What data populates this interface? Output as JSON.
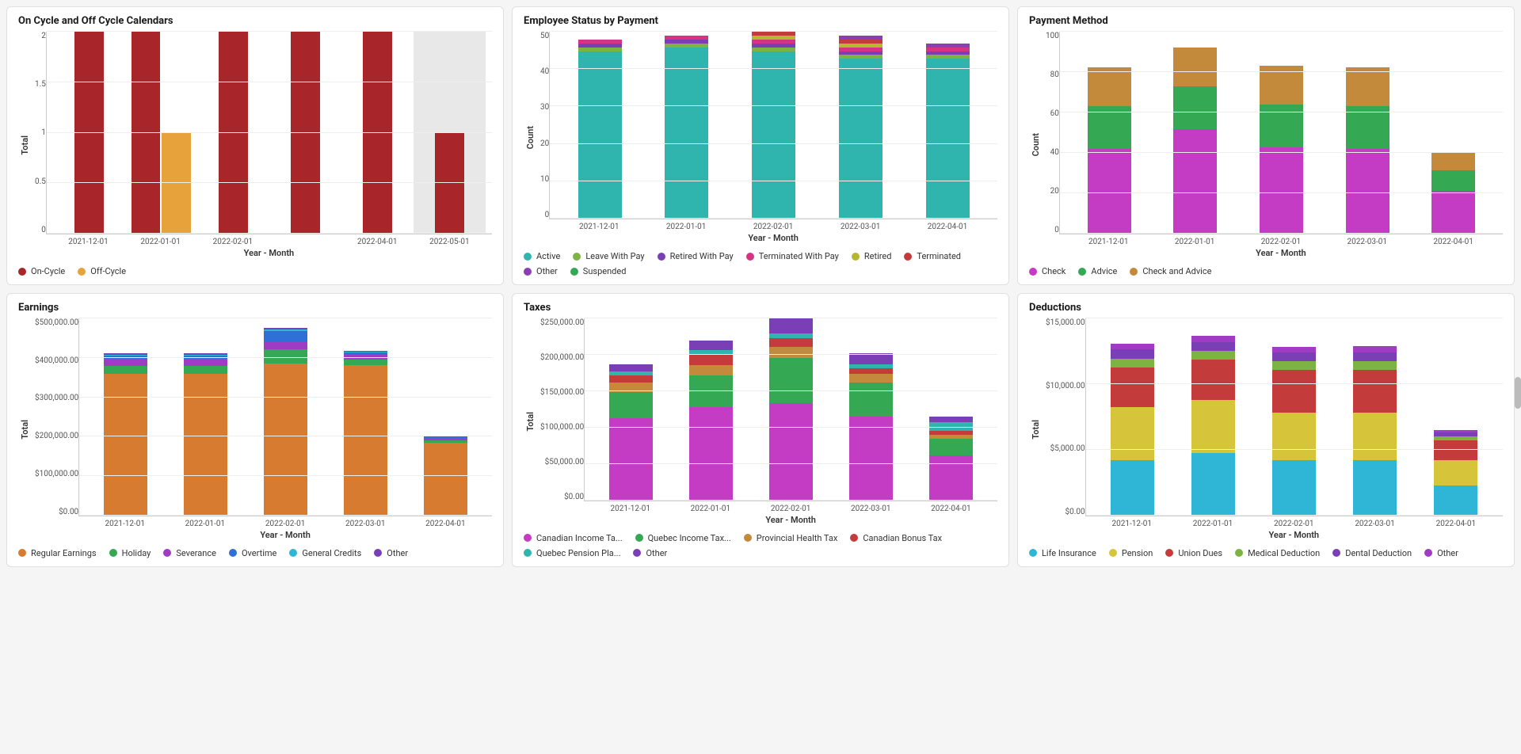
{
  "layout": {
    "columns": 3,
    "rows": 2,
    "background_color": "#f5f5f5",
    "panel_bg": "#ffffff",
    "panel_border": "#e0e0e0"
  },
  "axis_font_size": 11,
  "tick_font_size": 10,
  "legend_font_size": 11,
  "title_font_size": 13,
  "charts": [
    {
      "id": "cycle",
      "title": "On Cycle and Off Cycle Calendars",
      "type": "grouped-bar",
      "x_label": "Year - Month",
      "y_label": "Total",
      "categories": [
        "2021-12-01",
        "2022-01-01",
        "2022-02-01",
        "",
        "2022-04-01",
        "2022-05-01"
      ],
      "y_ticks": [
        "2",
        "1.5",
        "1",
        "0.5",
        "0"
      ],
      "y_max": 2,
      "grid_color": "#eeeeee",
      "highlight_last_bg": "#e8e8e8",
      "series": [
        {
          "name": "On-Cycle",
          "color": "#a8262a",
          "values": [
            2,
            2,
            2,
            2,
            2,
            1
          ]
        },
        {
          "name": "Off-Cycle",
          "color": "#e8a23c",
          "values": [
            0,
            1,
            0,
            0,
            0,
            0
          ]
        }
      ]
    },
    {
      "id": "emp-status",
      "title": "Employee Status by Payment",
      "type": "stacked-bar",
      "x_label": "Year - Month",
      "y_label": "Count",
      "categories": [
        "2021-12-01",
        "2022-01-01",
        "2022-02-01",
        "2022-03-01",
        "2022-04-01"
      ],
      "y_ticks": [
        "50",
        "40",
        "30",
        "20",
        "10",
        "0"
      ],
      "y_max": 50,
      "grid_color": "#eeeeee",
      "series": [
        {
          "name": "Active",
          "color": "#2fb5ad",
          "values": [
            43,
            44,
            43,
            41,
            41
          ]
        },
        {
          "name": "Leave With Pay",
          "color": "#7cb342",
          "values": [
            1,
            1,
            1,
            1,
            1
          ]
        },
        {
          "name": "Retired With Pay",
          "color": "#7b3fb5",
          "values": [
            1,
            1,
            1,
            1,
            1
          ]
        },
        {
          "name": "Terminated With Pay",
          "color": "#d63384",
          "values": [
            1,
            1,
            1,
            1,
            1
          ]
        },
        {
          "name": "Retired",
          "color": "#b5b82f",
          "values": [
            0,
            0,
            1,
            1,
            0
          ]
        },
        {
          "name": "Terminated",
          "color": "#c43b3b",
          "values": [
            0,
            0,
            1,
            1,
            0
          ]
        },
        {
          "name": "Other",
          "color": "#8a3fb5",
          "values": [
            0,
            0,
            0,
            1,
            1
          ]
        },
        {
          "name": "Suspended",
          "color": "#34a853",
          "values": [
            0,
            0,
            0,
            0,
            0
          ]
        }
      ]
    },
    {
      "id": "payment-method",
      "title": "Payment Method",
      "type": "stacked-bar",
      "x_label": "Year - Month",
      "y_label": "Count",
      "categories": [
        "2021-12-01",
        "2022-01-01",
        "2022-02-01",
        "2022-03-01",
        "2022-04-01"
      ],
      "y_ticks": [
        "100",
        "80",
        "60",
        "40",
        "20",
        "0"
      ],
      "y_max": 110,
      "grid_color": "#eeeeee",
      "series": [
        {
          "name": "Check",
          "color": "#c43bc4",
          "values": [
            48,
            59,
            49,
            48,
            24
          ]
        },
        {
          "name": "Advice",
          "color": "#34a853",
          "values": [
            24,
            24,
            24,
            24,
            12
          ]
        },
        {
          "name": "Check and Advice",
          "color": "#c48a3b",
          "values": [
            22,
            22,
            22,
            22,
            10
          ]
        }
      ]
    },
    {
      "id": "earnings",
      "title": "Earnings",
      "type": "stacked-bar",
      "x_label": "Year - Month",
      "y_label": "Total",
      "categories": [
        "2021-12-01",
        "2022-01-01",
        "2022-02-01",
        "2022-03-01",
        "2022-04-01"
      ],
      "y_ticks": [
        "$500,000.00",
        "$400,000.00",
        "$300,000.00",
        "$200,000.00",
        "$100,000.00",
        "$0.00"
      ],
      "y_max": 550000,
      "grid_color": "#eeeeee",
      "series": [
        {
          "name": "Regular Earnings",
          "color": "#d67b2f",
          "values": [
            400000,
            400000,
            430000,
            425000,
            205000
          ]
        },
        {
          "name": "Holiday",
          "color": "#34a853",
          "values": [
            22000,
            22000,
            40000,
            15000,
            8000
          ]
        },
        {
          "name": "Severance",
          "color": "#a03bc4",
          "values": [
            20000,
            20000,
            20000,
            15000,
            7000
          ]
        },
        {
          "name": "Overtime",
          "color": "#2f6fd6",
          "values": [
            10000,
            10000,
            30000,
            5000,
            3000
          ]
        },
        {
          "name": "General Credits",
          "color": "#2fb5d6",
          "values": [
            3000,
            3000,
            5000,
            2000,
            1000
          ]
        },
        {
          "name": "Other",
          "color": "#7b3fb5",
          "values": [
            3000,
            3000,
            5000,
            2000,
            1000
          ]
        }
      ]
    },
    {
      "id": "taxes",
      "title": "Taxes",
      "type": "stacked-bar",
      "x_label": "Year - Month",
      "y_label": "Total",
      "categories": [
        "2021-12-01",
        "2022-01-01",
        "2022-02-01",
        "2022-03-01",
        "2022-04-01"
      ],
      "y_ticks": [
        "$250,000.00",
        "$200,000.00",
        "$150,000.00",
        "$100,000.00",
        "$50,000.00",
        "$0.00"
      ],
      "y_max": 260000,
      "grid_color": "#eeeeee",
      "series": [
        {
          "name": "Canadian Income Ta...",
          "color": "#c43bc4",
          "values": [
            110000,
            125000,
            130000,
            112000,
            60000
          ]
        },
        {
          "name": "Quebec Income Tax...",
          "color": "#34a853",
          "values": [
            35000,
            42000,
            60000,
            45000,
            22000
          ]
        },
        {
          "name": "Provincial Health Tax",
          "color": "#c48a3b",
          "values": [
            12000,
            14000,
            15000,
            12000,
            6000
          ]
        },
        {
          "name": "Canadian Bonus Tax",
          "color": "#c43b3b",
          "values": [
            10000,
            15000,
            12000,
            8000,
            5000
          ]
        },
        {
          "name": "Quebec Pension Pla...",
          "color": "#2fb5ad",
          "values": [
            5000,
            5000,
            6000,
            5000,
            12000
          ]
        },
        {
          "name": "Other",
          "color": "#7b3fb5",
          "values": [
            10000,
            12000,
            20000,
            15000,
            7000
          ]
        }
      ]
    },
    {
      "id": "deductions",
      "title": "Deductions",
      "type": "stacked-bar",
      "x_label": "Year - Month",
      "y_label": "Total",
      "categories": [
        "2021-12-01",
        "2022-01-01",
        "2022-02-01",
        "2022-03-01",
        "2022-04-01"
      ],
      "y_ticks": [
        "$15,000.00",
        "$10,000.00",
        "$5,000.00",
        "$0.00"
      ],
      "y_max": 15500,
      "grid_color": "#eeeeee",
      "series": [
        {
          "name": "Life Insurance",
          "color": "#2fb5d6",
          "values": [
            4400,
            5000,
            4400,
            4400,
            2400
          ]
        },
        {
          "name": "Pension",
          "color": "#d6c43b",
          "values": [
            4200,
            4200,
            3800,
            3800,
            2000
          ]
        },
        {
          "name": "Union Dues",
          "color": "#c43b3b",
          "values": [
            3200,
            3200,
            3400,
            3400,
            1600
          ]
        },
        {
          "name": "Medical Deduction",
          "color": "#7cb342",
          "values": [
            700,
            700,
            700,
            700,
            300
          ]
        },
        {
          "name": "Dental Deduction",
          "color": "#7b3fb5",
          "values": [
            700,
            700,
            700,
            700,
            300
          ]
        },
        {
          "name": "Other",
          "color": "#a03bc4",
          "values": [
            500,
            500,
            400,
            500,
            200
          ]
        }
      ]
    }
  ]
}
